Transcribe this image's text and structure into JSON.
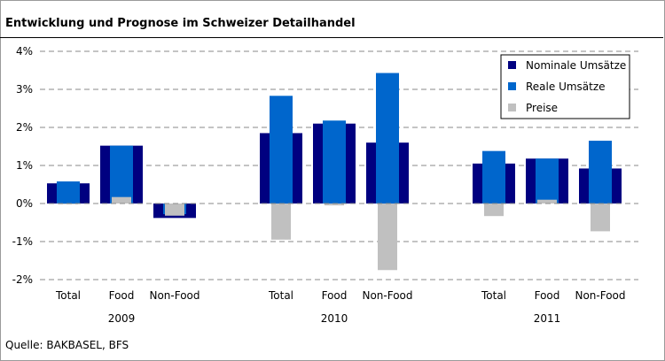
{
  "chart_data": {
    "type": "bar",
    "title": "Entwicklung und Prognose im Schweizer Detailhandel",
    "source": "Quelle: BAKBASEL, BFS",
    "ylim": [
      -2,
      4
    ],
    "yticks": [
      "4%",
      "3%",
      "2%",
      "1%",
      "0%",
      "-1%",
      "-2%"
    ],
    "grid": true,
    "legend_position": "top-right",
    "years": [
      "2009",
      "2010",
      "2011"
    ],
    "categories": [
      "Total",
      "Food",
      "Non-Food"
    ],
    "series": [
      {
        "name": "Nominale Umsätze",
        "color": "#000080",
        "values": [
          [
            0.53,
            1.52,
            -0.38
          ],
          [
            1.85,
            2.1,
            1.6
          ],
          [
            1.05,
            1.18,
            0.92
          ]
        ]
      },
      {
        "name": "Reale Umsätze",
        "color": "#0066CC",
        "values": [
          [
            0.58,
            1.52,
            -0.28
          ],
          [
            2.83,
            2.18,
            3.43
          ],
          [
            1.38,
            1.18,
            1.65
          ]
        ]
      },
      {
        "name": "Preise",
        "color": "#C0C0C0",
        "values": [
          [
            -0.02,
            0.17,
            -0.32
          ],
          [
            -0.95,
            -0.05,
            -1.75
          ],
          [
            -0.33,
            0.1,
            -0.73
          ]
        ]
      }
    ]
  }
}
